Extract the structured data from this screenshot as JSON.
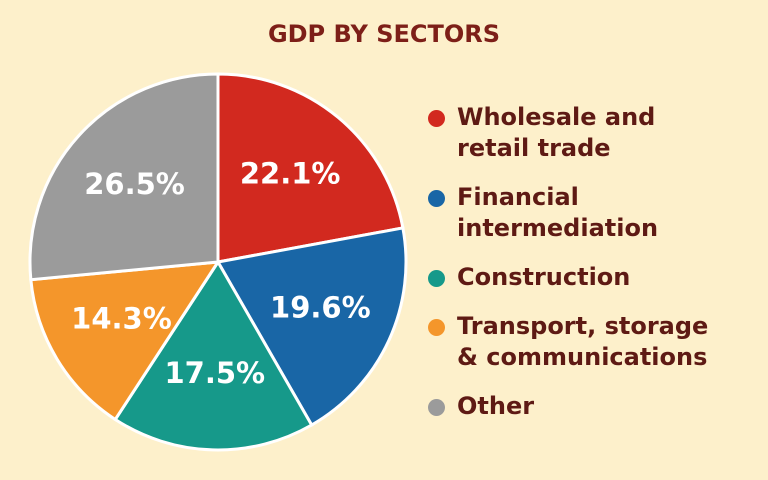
{
  "chart_data": {
    "type": "pie",
    "title": "GDP BY SECTORS",
    "categories": [
      "Wholesale and\nretail trade",
      "Financial\nintermediation",
      "Construction",
      "Transport, storage\n& communications",
      "Other"
    ],
    "values": [
      22.1,
      19.6,
      17.5,
      14.3,
      26.5
    ],
    "value_labels": [
      "22.1%",
      "19.6%",
      "17.5%",
      "14.3%",
      "26.5%"
    ],
    "colors": [
      "#d2291f",
      "#1966a6",
      "#16998a",
      "#f4962b",
      "#9b9b9b"
    ],
    "legend": "right"
  }
}
